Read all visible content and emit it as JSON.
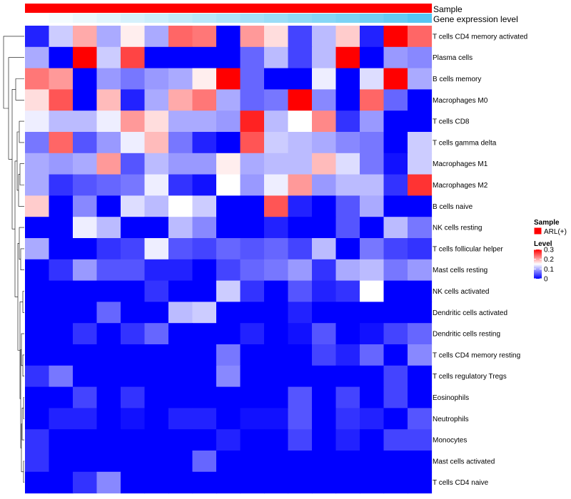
{
  "chart_data": {
    "type": "heatmap",
    "annotations": {
      "sample_label": "Sample",
      "gene_label": "Gene expression level"
    },
    "rows": [
      "T cells CD4 memory activated",
      "Plasma cells",
      "B cells memory",
      "Macrophages M0",
      "T cells CD8",
      "T cells gamma delta",
      "Macrophages M1",
      "Macrophages M2",
      "B cells naive",
      "NK cells resting",
      "T cells follicular helper",
      "Mast cells resting",
      "NK cells activated",
      "Dendritic cells activated",
      "Dendritic cells resting",
      "T cells CD4 memory resting",
      "T cells regulatory  Tregs",
      "Eosinophils",
      "Neutrophils",
      "Monocytes",
      "Mast cells activated",
      "T cells CD4 naive"
    ],
    "values": [
      [
        0.02,
        0.12,
        0.2,
        0.1,
        0.16,
        0.1,
        0.24,
        0.23,
        0.0,
        0.21,
        0.17,
        0.04,
        0.11,
        0.18,
        0.02,
        0.3,
        0.24
      ],
      [
        0.1,
        0.0,
        0.3,
        0.12,
        0.26,
        0.0,
        0.0,
        0.0,
        0.0,
        0.06,
        0.11,
        0.04,
        0.11,
        0.3,
        0.0,
        0.09,
        0.08
      ],
      [
        0.23,
        0.21,
        0.0,
        0.09,
        0.07,
        0.09,
        0.1,
        0.16,
        0.3,
        0.06,
        0.0,
        0.0,
        0.14,
        0.0,
        0.13,
        0.3,
        0.1
      ],
      [
        0.17,
        0.25,
        0.0,
        0.19,
        0.02,
        0.1,
        0.2,
        0.23,
        0.1,
        0.06,
        0.07,
        0.3,
        0.08,
        0.0,
        0.24,
        0.06,
        0.0
      ],
      [
        0.14,
        0.11,
        0.11,
        0.14,
        0.21,
        0.17,
        0.1,
        0.1,
        0.09,
        0.28,
        0.11,
        0.15,
        0.22,
        0.03,
        0.09,
        0.0,
        0.0
      ],
      [
        0.07,
        0.24,
        0.05,
        0.09,
        0.14,
        0.19,
        0.07,
        0.02,
        0.0,
        0.25,
        0.12,
        0.11,
        0.1,
        0.08,
        0.07,
        0.0,
        0.12
      ],
      [
        0.1,
        0.09,
        0.1,
        0.21,
        0.05,
        0.11,
        0.09,
        0.09,
        0.16,
        0.1,
        0.11,
        0.11,
        0.19,
        0.13,
        0.07,
        0.01,
        0.12
      ],
      [
        0.1,
        0.03,
        0.05,
        0.06,
        0.07,
        0.14,
        0.03,
        0.01,
        0.15,
        0.09,
        0.14,
        0.21,
        0.09,
        0.11,
        0.11,
        0.03,
        0.27
      ],
      [
        0.18,
        0.0,
        0.08,
        0.0,
        0.13,
        0.11,
        0.15,
        0.12,
        0.0,
        0.0,
        0.25,
        0.02,
        0.0,
        0.05,
        0.1,
        0.0,
        0.0
      ],
      [
        0.0,
        0.0,
        0.14,
        0.11,
        0.0,
        0.0,
        0.11,
        0.08,
        0.0,
        0.0,
        0.02,
        0.0,
        0.0,
        0.05,
        0.0,
        0.11,
        0.07
      ],
      [
        0.1,
        0.0,
        0.0,
        0.03,
        0.04,
        0.14,
        0.05,
        0.04,
        0.06,
        0.05,
        0.06,
        0.04,
        0.11,
        0.0,
        0.07,
        0.04,
        0.03
      ],
      [
        0.0,
        0.03,
        0.09,
        0.05,
        0.05,
        0.02,
        0.02,
        0.0,
        0.04,
        0.06,
        0.07,
        0.09,
        0.03,
        0.1,
        0.11,
        0.07,
        0.09
      ],
      [
        0.0,
        0.0,
        0.0,
        0.0,
        0.0,
        0.03,
        0.0,
        0.0,
        0.12,
        0.03,
        0.0,
        0.05,
        0.02,
        0.03,
        0.15,
        0.0,
        0.0
      ],
      [
        0.0,
        0.0,
        0.0,
        0.06,
        0.0,
        0.0,
        0.11,
        0.12,
        0.0,
        0.0,
        0.0,
        0.02,
        0.0,
        0.0,
        0.0,
        0.0,
        0.0
      ],
      [
        0.0,
        0.0,
        0.03,
        0.0,
        0.03,
        0.06,
        0.0,
        0.0,
        0.0,
        0.02,
        0.0,
        0.01,
        0.05,
        0.0,
        0.01,
        0.04,
        0.06
      ],
      [
        0.0,
        0.0,
        0.0,
        0.0,
        0.0,
        0.0,
        0.0,
        0.0,
        0.07,
        0.0,
        0.0,
        0.0,
        0.04,
        0.02,
        0.06,
        0.0,
        0.08
      ],
      [
        0.03,
        0.07,
        0.0,
        0.0,
        0.0,
        0.0,
        0.0,
        0.0,
        0.08,
        0.0,
        0.0,
        0.0,
        0.0,
        0.0,
        0.0,
        0.04,
        0.0
      ],
      [
        0.0,
        0.0,
        0.04,
        0.0,
        0.03,
        0.0,
        0.0,
        0.0,
        0.0,
        0.0,
        0.0,
        0.05,
        0.0,
        0.04,
        0.0,
        0.04,
        0.0
      ],
      [
        0.0,
        0.02,
        0.02,
        0.0,
        0.01,
        0.0,
        0.02,
        0.02,
        0.0,
        0.01,
        0.01,
        0.05,
        0.0,
        0.03,
        0.02,
        0.0,
        0.05
      ],
      [
        0.03,
        0.0,
        0.0,
        0.0,
        0.0,
        0.0,
        0.0,
        0.0,
        0.02,
        0.0,
        0.0,
        0.04,
        0.0,
        0.02,
        0.0,
        0.04,
        0.04
      ],
      [
        0.03,
        0.0,
        0.0,
        0.0,
        0.0,
        0.0,
        0.0,
        0.06,
        0.0,
        0.0,
        0.0,
        0.0,
        0.0,
        0.0,
        0.0,
        0.0,
        0.0
      ],
      [
        0.0,
        0.0,
        0.03,
        0.08,
        0.0,
        0.0,
        0.0,
        0.0,
        0.0,
        0.0,
        0.0,
        0.0,
        0.0,
        0.0,
        0.0,
        0.0,
        0.0
      ]
    ],
    "gene_expression_level": [
      0.0,
      0.06,
      0.12,
      0.18,
      0.24,
      0.3,
      0.36,
      0.42,
      0.48,
      0.54,
      0.6,
      0.66,
      0.72,
      0.78,
      0.84,
      0.92,
      1.0
    ],
    "sample_group": "ARL(+)",
    "colors": {
      "sample": "#ff0000",
      "gene_low": "#ffffff",
      "gene_high": "#56c6f2",
      "low": "#0000ff",
      "mid": "#ffffff",
      "high": "#ff0000"
    },
    "legend": {
      "sample_title": "Sample",
      "sample_entry": "ARL(+)",
      "level_title": "Level",
      "level_ticks": [
        "0.3",
        "0.2",
        "0.1",
        "0"
      ],
      "level_tick_values": [
        0.3,
        0.2,
        0.1,
        0
      ],
      "range": [
        0,
        0.3
      ],
      "midpoint": 0.15
    }
  }
}
